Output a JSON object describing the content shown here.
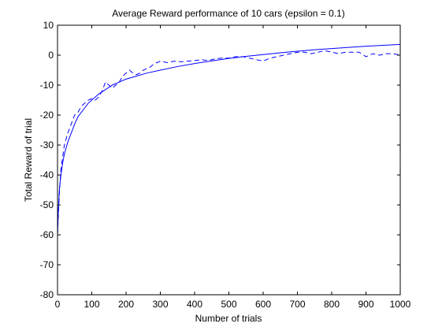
{
  "chart_data": {
    "type": "line",
    "title": "Average Reward performance of 10 cars (epsilon = 0.1)",
    "xlabel": "Number of trials",
    "ylabel": "Total Reward of trial",
    "xlim": [
      0,
      1000
    ],
    "ylim": [
      -80,
      10
    ],
    "xticks": [
      0,
      100,
      200,
      300,
      400,
      500,
      600,
      700,
      800,
      900,
      1000
    ],
    "yticks": [
      10,
      0,
      -10,
      -20,
      -30,
      -40,
      -50,
      -60,
      -70,
      -80
    ],
    "grid": false,
    "line_color": "#0000ff",
    "series": [
      {
        "style": "dashed",
        "x": [
          0,
          3,
          6,
          10,
          15,
          20,
          30,
          40,
          50,
          60,
          70,
          80,
          90,
          100,
          110,
          120,
          130,
          140,
          150,
          160,
          170,
          180,
          190,
          200,
          210,
          220,
          230,
          240,
          250,
          260,
          270,
          280,
          290,
          300,
          320,
          340,
          360,
          380,
          400,
          420,
          440,
          460,
          480,
          500,
          520,
          540,
          560,
          580,
          600,
          620,
          640,
          660,
          680,
          700,
          720,
          740,
          760,
          780,
          800,
          820,
          840,
          860,
          880,
          900,
          920,
          940,
          960,
          980,
          1000
        ],
        "y": [
          -60,
          -52,
          -45,
          -38,
          -34,
          -30,
          -26,
          -23,
          -20,
          -19,
          -17,
          -16,
          -15,
          -14.5,
          -15,
          -14,
          -12,
          -9,
          -10,
          -11,
          -10,
          -9,
          -7,
          -6,
          -5,
          -6,
          -6.5,
          -6,
          -5,
          -4.5,
          -4,
          -3,
          -2.5,
          -2,
          -2.5,
          -2,
          -2.2,
          -2,
          -1.8,
          -1.5,
          -1.8,
          -1.2,
          -1,
          -1,
          -0.5,
          -0.5,
          -1,
          -1.5,
          -2,
          -1,
          -0.5,
          0,
          0.5,
          1,
          1,
          0.5,
          1,
          1.5,
          1,
          0.5,
          1,
          1,
          1,
          -0.5,
          0.5,
          0,
          0.5,
          0.5,
          0
        ]
      },
      {
        "style": "solid",
        "x": [
          0,
          3,
          6,
          10,
          15,
          20,
          30,
          40,
          50,
          60,
          70,
          80,
          90,
          100,
          120,
          140,
          160,
          180,
          200,
          230,
          260,
          300,
          350,
          400,
          450,
          500,
          550,
          600,
          650,
          700,
          750,
          800,
          850,
          900,
          950,
          1000
        ],
        "y": [
          -60,
          -50,
          -44,
          -40,
          -36,
          -33,
          -29,
          -26,
          -23,
          -20.5,
          -19,
          -17.5,
          -16,
          -15,
          -13,
          -11.5,
          -10,
          -9,
          -8,
          -7,
          -6,
          -5,
          -3.8,
          -2.8,
          -1.9,
          -1.1,
          -0.4,
          0.2,
          0.8,
          1.3,
          1.8,
          2.2,
          2.6,
          3,
          3.3,
          3.6
        ]
      }
    ]
  }
}
